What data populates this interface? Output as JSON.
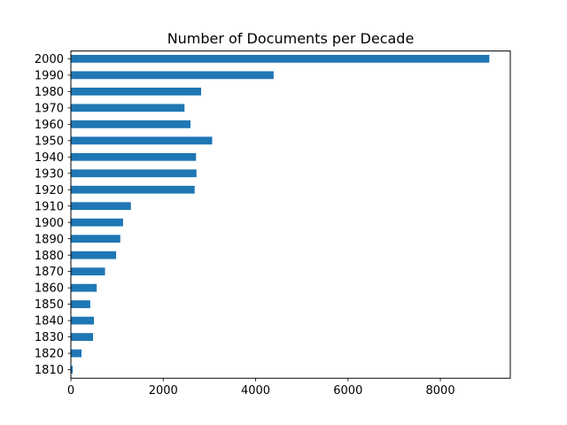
{
  "chart_data": {
    "type": "bar",
    "orientation": "horizontal",
    "title": "Number of Documents per Decade",
    "xlabel": "",
    "ylabel": "",
    "categories": [
      "1810",
      "1820",
      "1830",
      "1840",
      "1850",
      "1860",
      "1870",
      "1880",
      "1890",
      "1900",
      "1910",
      "1920",
      "1930",
      "1940",
      "1950",
      "1960",
      "1970",
      "1980",
      "1990",
      "2000"
    ],
    "values": [
      40,
      230,
      480,
      500,
      420,
      560,
      740,
      980,
      1070,
      1130,
      1300,
      2680,
      2720,
      2710,
      3060,
      2590,
      2460,
      2820,
      4390,
      9060
    ],
    "xlim": [
      0,
      9514
    ],
    "xticks": [
      0,
      2000,
      4000,
      6000,
      8000
    ],
    "grid": false,
    "legend": "none",
    "bar_color": "#1f77b4"
  }
}
